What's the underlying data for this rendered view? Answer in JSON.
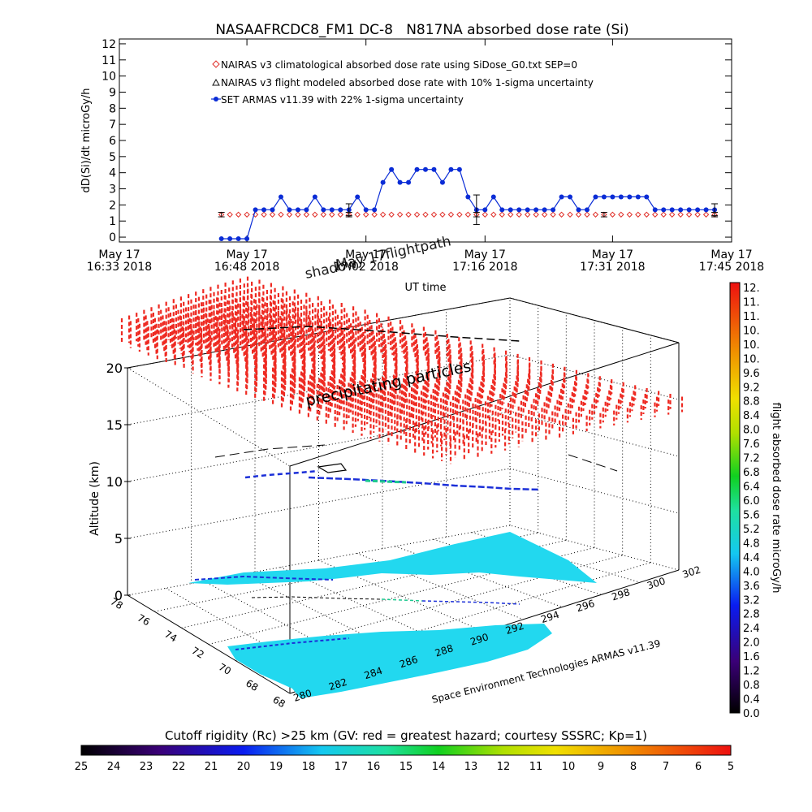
{
  "colors": {
    "series_armas": "#0a2cd6",
    "series_climo": "#e0302a",
    "series_modeled": "#111111",
    "particles": "#ee2a22",
    "cyan_region": "#22d8ef"
  },
  "chart_data": [
    {
      "type": "line",
      "title": "NASAAFRCDC8_FM1 DC-8   N817NA absorbed dose rate (Si)",
      "xlabel": "UT time",
      "ylabel": "dD(Si)/dt microGy/h",
      "ylim": [
        0,
        12
      ],
      "yticks": [
        "0",
        "1",
        "2",
        "3",
        "4",
        "5",
        "6",
        "7",
        "8",
        "9",
        "10",
        "11",
        "12"
      ],
      "xlim_minutes": [
        0,
        72
      ],
      "xtick_minutes": [
        0,
        15,
        29,
        43,
        58,
        72
      ],
      "xtick_labels": [
        {
          "top": "May 17",
          "bottom": "16:33 2018"
        },
        {
          "top": "May 17",
          "bottom": "16:48 2018"
        },
        {
          "top": "May 17",
          "bottom": "17:02 2018"
        },
        {
          "top": "May 17",
          "bottom": "17:16 2018"
        },
        {
          "top": "May 17",
          "bottom": "17:31 2018"
        },
        {
          "top": "May 17",
          "bottom": "17:45 2018"
        }
      ],
      "legend_position": "top-left",
      "series": [
        {
          "name": "NAIRAS v3 climatological absorbed dose rate using SiDose_G0.txt SEP=0",
          "marker": "diamond",
          "x": [
            12,
            13,
            14,
            15,
            16,
            17,
            18,
            19,
            20,
            21,
            22,
            23,
            24,
            25,
            26,
            27,
            28,
            29,
            30,
            31,
            32,
            33,
            34,
            35,
            36,
            37,
            38,
            39,
            40,
            41,
            42,
            43,
            44,
            45,
            46,
            47,
            48,
            49,
            50,
            51,
            52,
            53,
            54,
            55,
            56,
            57,
            58,
            59,
            60,
            61,
            62,
            63,
            64,
            65,
            66,
            67,
            68,
            69,
            70
          ],
          "y": [
            1.4,
            1.4,
            1.4,
            1.4,
            1.4,
            1.4,
            1.4,
            1.4,
            1.4,
            1.4,
            1.4,
            1.4,
            1.4,
            1.4,
            1.4,
            1.4,
            1.4,
            1.4,
            1.4,
            1.4,
            1.4,
            1.4,
            1.4,
            1.4,
            1.4,
            1.4,
            1.4,
            1.4,
            1.4,
            1.4,
            1.4,
            1.4,
            1.4,
            1.4,
            1.4,
            1.4,
            1.4,
            1.4,
            1.4,
            1.4,
            1.4,
            1.4,
            1.4,
            1.4,
            1.4,
            1.4,
            1.4,
            1.4,
            1.4,
            1.4,
            1.4,
            1.4,
            1.4,
            1.4,
            1.4,
            1.4,
            1.4,
            1.4,
            1.4
          ]
        },
        {
          "name": "NAIRAS v3 flight modeled absorbed dose rate with 10% 1-sigma uncertainty",
          "marker": "errorbar",
          "x": [
            12,
            27,
            42,
            57,
            70
          ],
          "y": [
            1.4,
            1.4,
            1.4,
            1.4,
            1.4
          ],
          "err": [
            0.14,
            0.14,
            0.14,
            0.14,
            0.14
          ]
        },
        {
          "name": "SET ARMAS v11.39 with 22% 1-sigma uncertainty",
          "marker": "filled-circle",
          "x": [
            12,
            13,
            14,
            15,
            16,
            17,
            18,
            19,
            20,
            21,
            22,
            23,
            24,
            25,
            26,
            27,
            28,
            29,
            30,
            31,
            32,
            33,
            34,
            35,
            36,
            37,
            38,
            39,
            40,
            41,
            42,
            43,
            44,
            45,
            46,
            47,
            48,
            49,
            50,
            51,
            52,
            53,
            54,
            55,
            56,
            57,
            58,
            59,
            60,
            61,
            62,
            63,
            64,
            65,
            66,
            67,
            68,
            69,
            70
          ],
          "y": [
            -0.1,
            -0.1,
            -0.1,
            -0.1,
            1.7,
            1.7,
            1.7,
            2.5,
            1.7,
            1.7,
            1.7,
            2.5,
            1.7,
            1.7,
            1.7,
            1.7,
            2.5,
            1.7,
            1.7,
            3.4,
            4.2,
            3.4,
            3.4,
            4.2,
            4.2,
            4.2,
            3.4,
            4.2,
            4.2,
            2.5,
            1.7,
            1.7,
            2.5,
            1.7,
            1.7,
            1.7,
            1.7,
            1.7,
            1.7,
            1.7,
            2.5,
            2.5,
            1.7,
            1.7,
            2.5,
            2.5,
            2.5,
            2.5,
            2.5,
            2.5,
            2.5,
            1.7,
            1.7,
            1.7,
            1.7,
            1.7,
            1.7,
            1.7,
            1.7
          ],
          "errorbars_at": [
            27,
            42,
            70
          ],
          "err_at": [
            0.37,
            0.92,
            0.37
          ]
        }
      ]
    },
    {
      "type": "scatter",
      "title_overlays": [
        "shadow",
        "May 17flightpath"
      ],
      "annotation": "precipitating particles",
      "zlabel": "Altitude (km)",
      "zticks": [
        "0",
        "5",
        "10",
        "15",
        "20"
      ],
      "lat_ticks": [
        "76",
        "74",
        "72",
        "70",
        "68"
      ],
      "lat_top_partial": "78",
      "lat_bottom_partial": "68",
      "lon_ticks": [
        "280",
        "282",
        "284",
        "286",
        "288",
        "290",
        "292",
        "294",
        "296",
        "298",
        "300",
        "302"
      ],
      "credit": "Space Environment Technologies ARMAS v11.39",
      "colorbar_right": {
        "label": "flight absorbed dose rate microGy/h",
        "ticks": [
          "12.",
          "11.",
          "11.",
          "10.",
          "10.",
          "10.",
          "9.6",
          "9.2",
          "8.8",
          "8.4",
          "8.0",
          "7.6",
          "7.2",
          "6.8",
          "6.4",
          "6.0",
          "5.6",
          "5.2",
          "4.8",
          "4.4",
          "4.0",
          "3.6",
          "3.2",
          "2.8",
          "2.4",
          "2.0",
          "1.6",
          "1.2",
          "0.8",
          "0.4",
          "0.0"
        ]
      },
      "colorbar_bottom": {
        "label": "Cutoff rigidity (Rc) >25 km (GV: red = greatest hazard; courtesy SSSRC; Kp=1)",
        "ticks": [
          "25",
          "24",
          "23",
          "22",
          "21",
          "20",
          "19",
          "18",
          "17",
          "16",
          "15",
          "14",
          "13",
          "12",
          "11",
          "10",
          "9",
          "8",
          "7",
          "6",
          "5"
        ]
      }
    }
  ]
}
